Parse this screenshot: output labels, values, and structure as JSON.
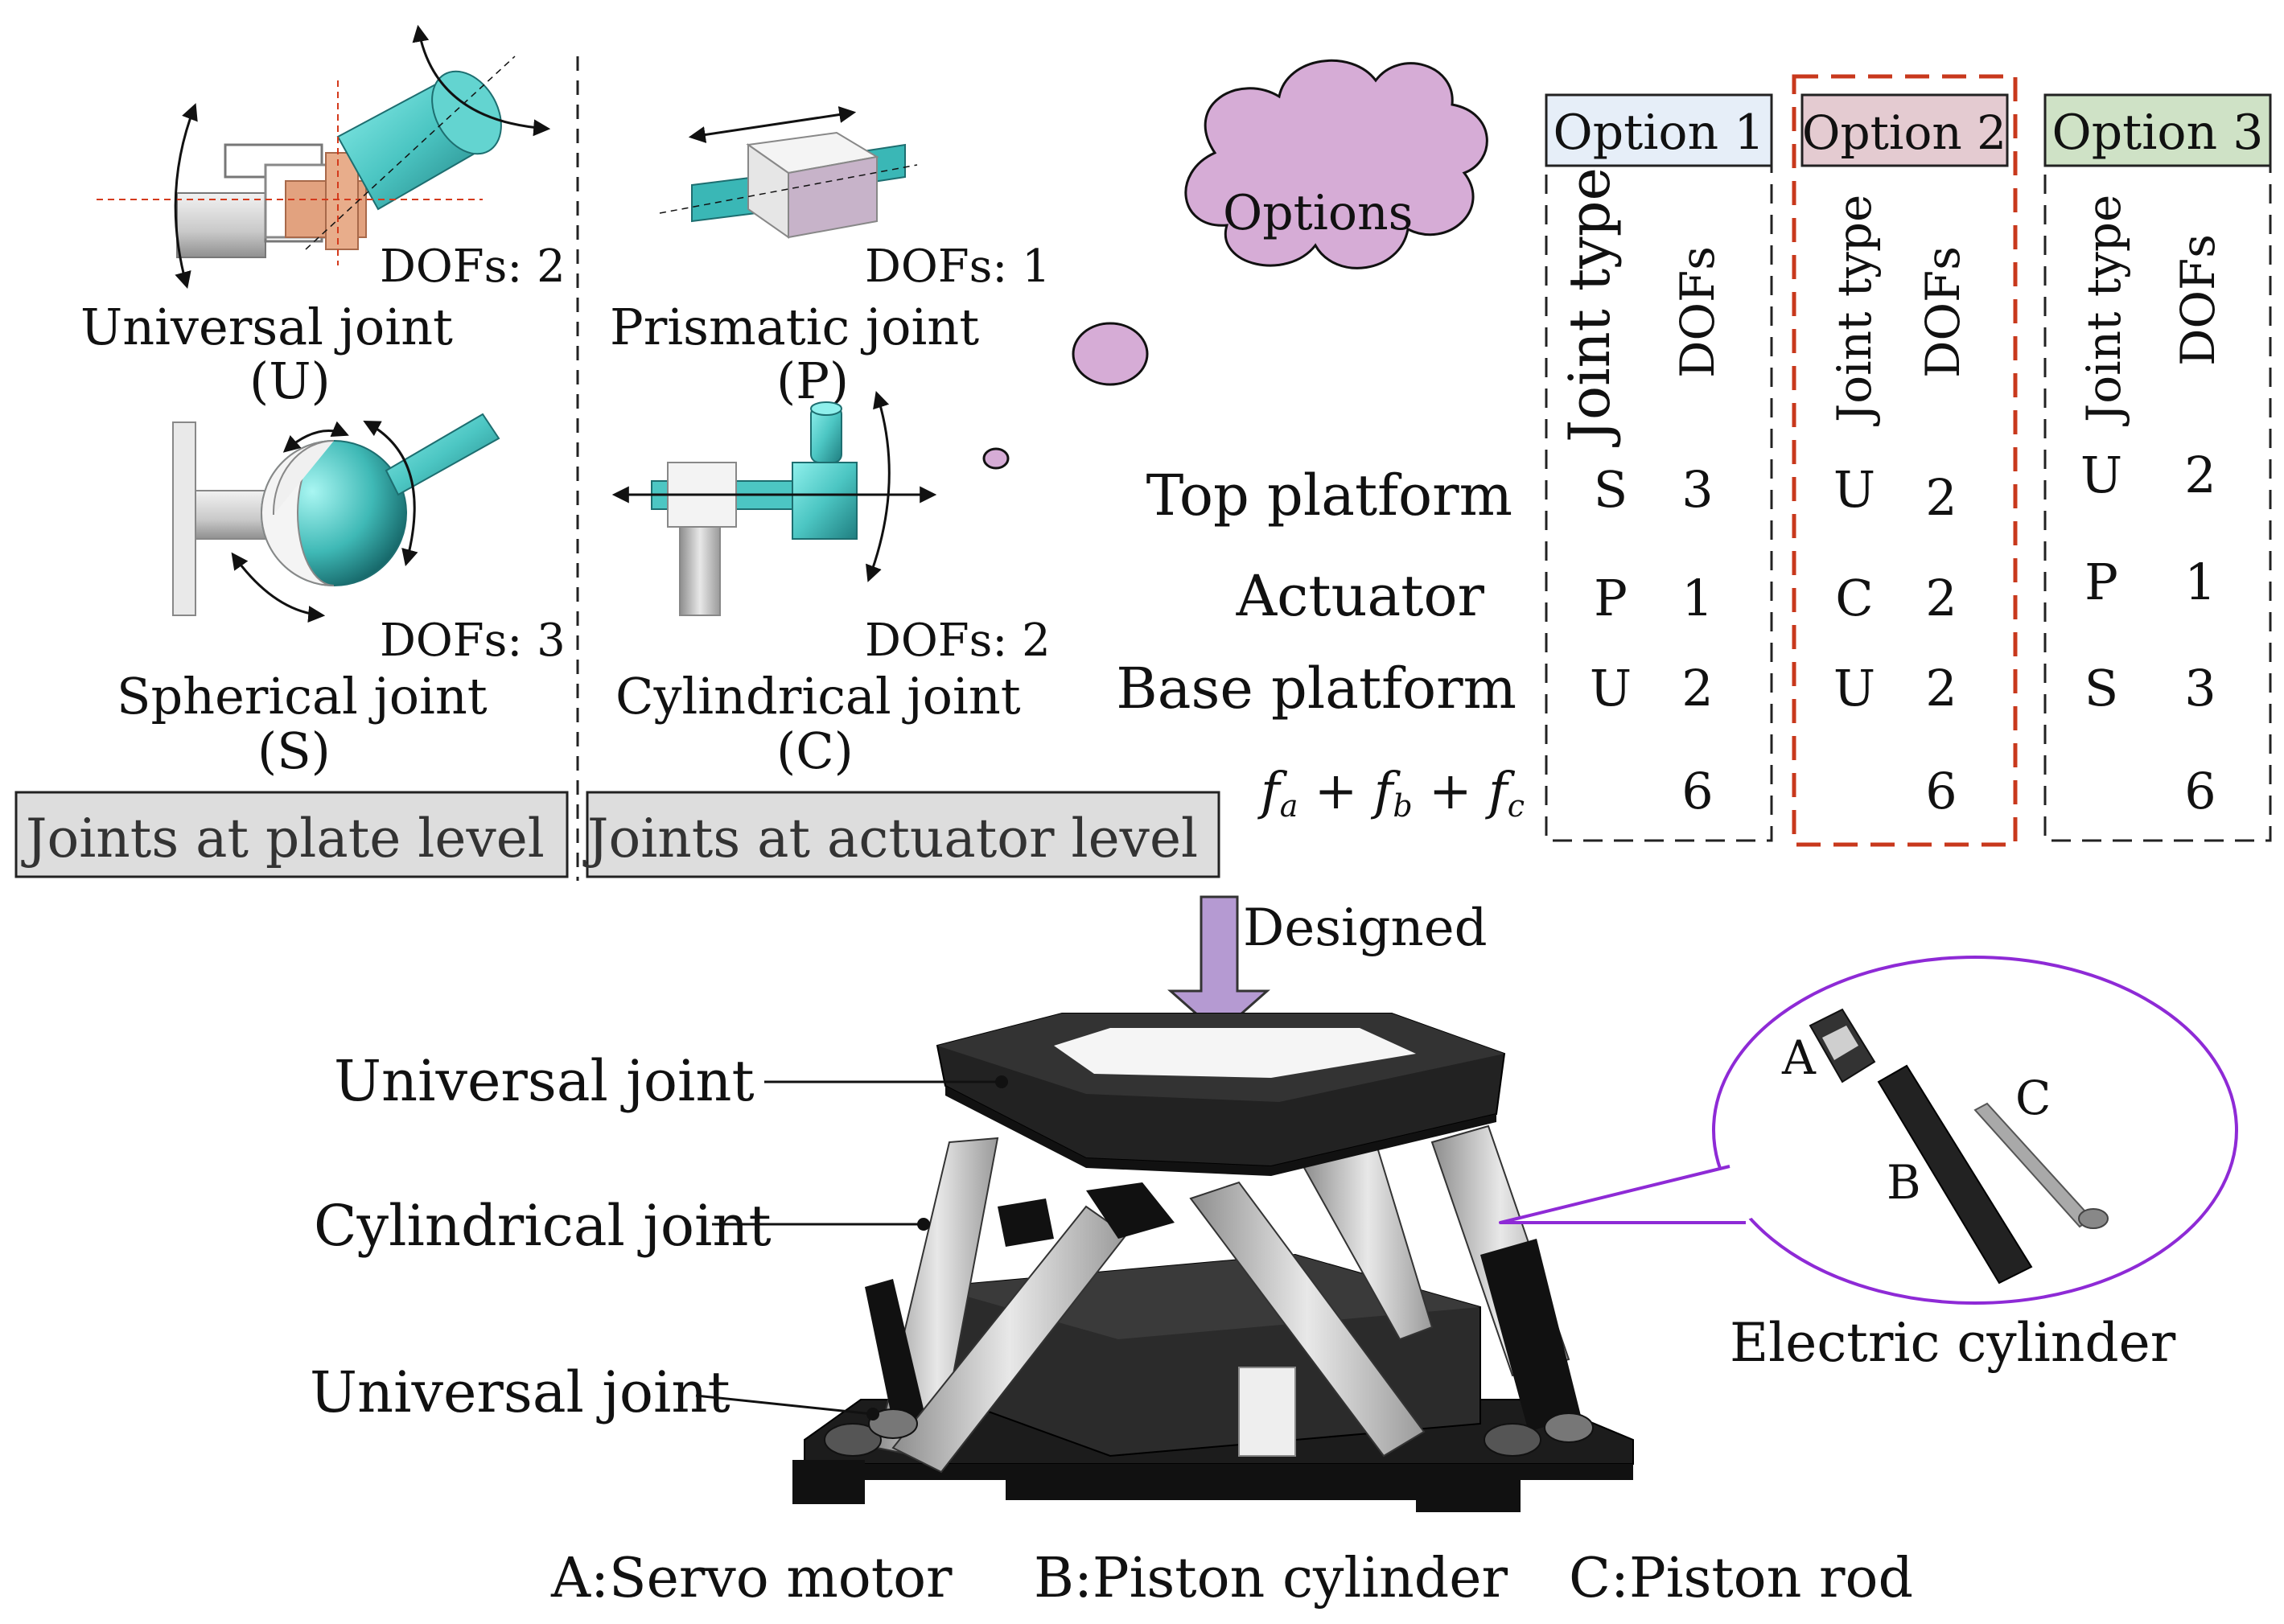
{
  "joints": {
    "universal": {
      "name": "Universal joint",
      "abbr": "(U)",
      "dofs": "DOFs: 2"
    },
    "prismatic": {
      "name": "Prismatic joint",
      "abbr": "(P)",
      "dofs": "DOFs: 1"
    },
    "spherical": {
      "name": "Spherical joint",
      "abbr": "(S)",
      "dofs": "DOFs: 3"
    },
    "cylindrical": {
      "name": "Cylindrical joint",
      "abbr": "(C)",
      "dofs": "DOFs: 2"
    }
  },
  "level_boxes": {
    "plate": "Joints at plate level",
    "actuator": "Joints at actuator level"
  },
  "cloud": {
    "label": "Options"
  },
  "table": {
    "row_labels": [
      "Top platform",
      "Actuator",
      "Base platform",
      "fa + fb + fc"
    ],
    "col_joint": "Joint type",
    "col_dofs": "DOFs",
    "options": [
      {
        "title": "Option 1",
        "color": "#e6eef8",
        "joints": [
          "S",
          "P",
          "U",
          ""
        ],
        "dofs": [
          "3",
          "1",
          "2",
          "6"
        ]
      },
      {
        "title": "Option 2",
        "color": "#e4cbd1",
        "joints": [
          "U",
          "C",
          "U",
          ""
        ],
        "dofs": [
          "2",
          "2",
          "2",
          "6"
        ]
      },
      {
        "title": "Option 3",
        "color": "#cfe2c6",
        "joints": [
          "U",
          "P",
          "S",
          ""
        ],
        "dofs": [
          "2",
          "1",
          "3",
          "6"
        ]
      }
    ],
    "highlight_color": "#c8381c"
  },
  "designed_label": "Designed",
  "platform_labels": {
    "top_joint": "Universal joint",
    "actuator_joint": "Cylindrical joint",
    "bottom_joint": "Universal joint"
  },
  "electric_cylinder": {
    "title": "Electric cylinder",
    "parts": [
      "A",
      "B",
      "C"
    ],
    "bubble_color": "#8e2ad6"
  },
  "legend": {
    "a": "A:Servo motor",
    "b": "B:Piston cylinder",
    "c": "C:Piston rod"
  }
}
